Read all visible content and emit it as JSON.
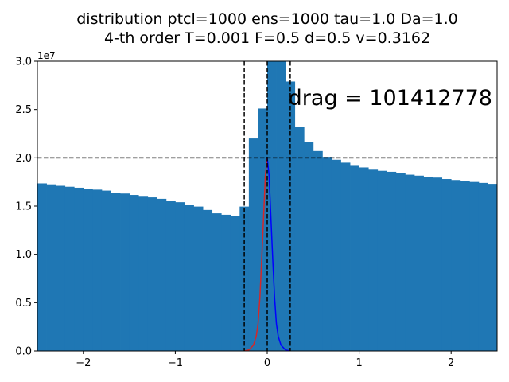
{
  "chart_data": {
    "type": "bar",
    "title_line1": "distribution ptcl=1000 ens=1000 tau=1.0 Da=1.0",
    "title_line2": "4-th order T=0.001 F=0.5 d=0.5 v=0.3162",
    "xlabel": "",
    "ylabel": "",
    "y_offset_label": "1e7",
    "xlim": [
      -2.5,
      2.5
    ],
    "ylim": [
      0,
      3.0
    ],
    "x_ticks": [
      -2,
      -1,
      0,
      1,
      2
    ],
    "x_tick_labels": [
      "−2",
      "−1",
      "0",
      "1",
      "2"
    ],
    "y_ticks": [
      0,
      0.5,
      1.0,
      1.5,
      2.0,
      2.5,
      3.0
    ],
    "y_tick_labels": [
      "0.0",
      "0.5",
      "1.0",
      "1.5",
      "2.0",
      "2.5",
      "3.0"
    ],
    "grid": false,
    "histogram": {
      "bin_start": -2.5,
      "bin_width": 0.1,
      "color": "#1f77b4",
      "values": [
        1.735,
        1.725,
        1.71,
        1.7,
        1.69,
        1.68,
        1.67,
        1.66,
        1.64,
        1.63,
        1.615,
        1.605,
        1.59,
        1.575,
        1.555,
        1.54,
        1.515,
        1.495,
        1.46,
        1.425,
        1.41,
        1.4,
        1.495,
        2.2,
        2.51,
        3.0,
        3.0,
        2.79,
        2.32,
        2.16,
        2.07,
        2.01,
        1.98,
        1.95,
        1.925,
        1.9,
        1.885,
        1.865,
        1.855,
        1.84,
        1.825,
        1.815,
        1.805,
        1.795,
        1.78,
        1.77,
        1.76,
        1.75,
        1.74,
        1.73
      ]
    },
    "vlines": [
      -0.25,
      0,
      0.25
    ],
    "hline": 2.0,
    "curves": [
      {
        "color": "#d62728",
        "x": [
          -0.25,
          -0.2,
          -0.15,
          -0.12,
          -0.1,
          -0.08,
          -0.06,
          -0.04,
          -0.02,
          0
        ],
        "y": [
          0,
          0.01,
          0.06,
          0.15,
          0.28,
          0.55,
          0.95,
          1.38,
          1.82,
          2.0
        ]
      },
      {
        "color": "#0000ff",
        "x": [
          0,
          0.02,
          0.04,
          0.06,
          0.08,
          0.1,
          0.12,
          0.15,
          0.2,
          0.25
        ],
        "y": [
          2.0,
          1.82,
          1.38,
          0.95,
          0.55,
          0.28,
          0.15,
          0.06,
          0.01,
          0
        ]
      }
    ],
    "annotation": "drag = 101412778"
  }
}
